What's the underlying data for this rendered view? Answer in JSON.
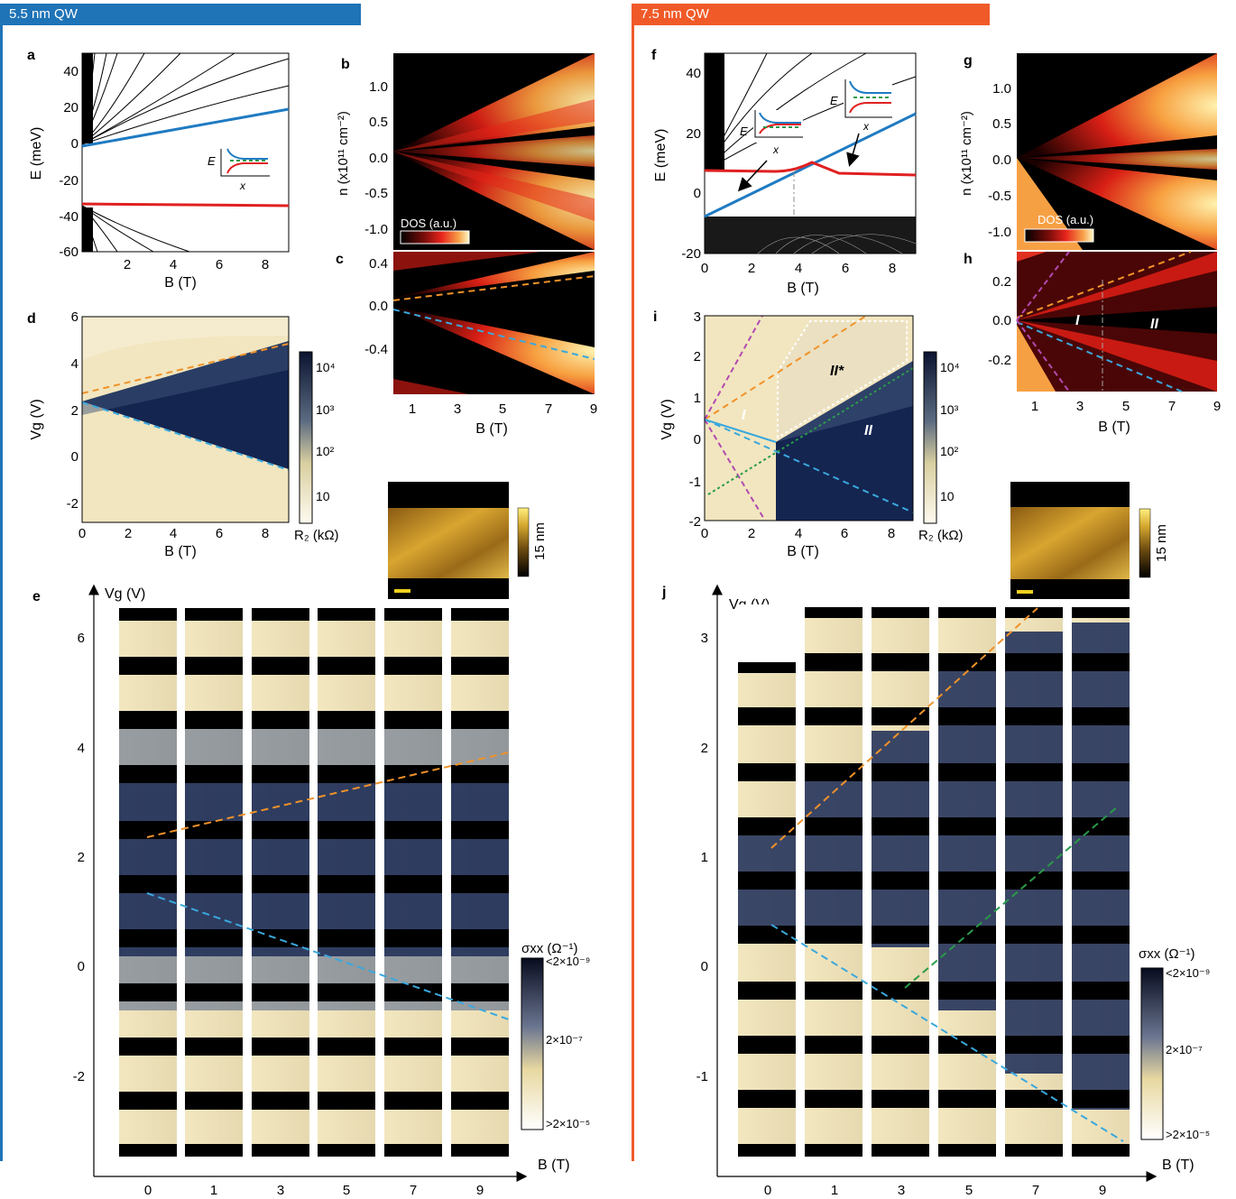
{
  "left_column": {
    "banner_label": "5.5 nm QW",
    "banner_color": "#1f73b7",
    "panels": {
      "a": {
        "letter": "a",
        "xlabel": "B (T)",
        "ylabel": "E (meV)",
        "xticks": [
          "2",
          "4",
          "6",
          "8"
        ],
        "yticks": [
          "40",
          "20",
          "0",
          "-20",
          "-40",
          "-60"
        ],
        "inset_ylabel": "E",
        "inset_xlabel": "x"
      },
      "b": {
        "letter": "b",
        "ylabel": "n (x10¹¹ cm⁻²)",
        "yticks": [
          "1.0",
          "0.5",
          "0.0",
          "-0.5",
          "-1.0"
        ],
        "colorbar_label": "DOS (a.u.)"
      },
      "c": {
        "letter": "c",
        "xlabel": "B (T)",
        "xticks": [
          "1",
          "3",
          "5",
          "7",
          "9"
        ],
        "yticks": [
          "0.4",
          "0.0",
          "-0.4"
        ]
      },
      "d": {
        "letter": "d",
        "xlabel": "B (T)",
        "ylabel": "Vg (V)",
        "xticks": [
          "0",
          "2",
          "4",
          "6",
          "8"
        ],
        "yticks": [
          "6",
          "4",
          "2",
          "0",
          "-2"
        ],
        "colorbar_ticks": [
          "10⁴",
          "10³",
          "10²",
          "10"
        ],
        "colorbar_label": "R₂ (kΩ)"
      },
      "afm": {
        "scale_label": "15 nm"
      },
      "e": {
        "letter": "e",
        "ylabel": "Vg (V)",
        "xlabel": "B (T)",
        "yticks": [
          "6",
          "4",
          "2",
          "0",
          "-2"
        ],
        "xticks": [
          "0",
          "1",
          "3",
          "5",
          "7",
          "9"
        ],
        "colorbar_label": "σxx (Ω⁻¹)",
        "colorbar_ticks": [
          "<2×10⁻⁹",
          "2×10⁻⁷",
          ">2×10⁻⁵"
        ]
      }
    }
  },
  "right_column": {
    "banner_label": "7.5 nm QW",
    "banner_color": "#f05a28",
    "panels": {
      "f": {
        "letter": "f",
        "xlabel": "B (T)",
        "ylabel": "E (meV)",
        "xticks": [
          "0",
          "2",
          "4",
          "6",
          "8"
        ],
        "yticks": [
          "40",
          "20",
          "0",
          "-20"
        ],
        "inset_ylabel": "E",
        "inset_xlabel": "x"
      },
      "g": {
        "letter": "g",
        "ylabel": "n (x10¹¹ cm⁻²)",
        "yticks": [
          "1.0",
          "0.5",
          "0.0",
          "-0.5",
          "-1.0"
        ],
        "colorbar_label": "DOS (a.u.)"
      },
      "h": {
        "letter": "h",
        "xlabel": "B (T)",
        "xticks": [
          "1",
          "3",
          "5",
          "7",
          "9"
        ],
        "yticks": [
          "0.2",
          "0.0",
          "-0.2"
        ],
        "region_labels": [
          "I",
          "II"
        ]
      },
      "i": {
        "letter": "i",
        "xlabel": "B (T)",
        "ylabel": "Vg (V)",
        "xticks": [
          "0",
          "2",
          "4",
          "6",
          "8"
        ],
        "yticks": [
          "3",
          "2",
          "1",
          "0",
          "-1",
          "-2"
        ],
        "region_labels": [
          "I",
          "II*",
          "II"
        ],
        "colorbar_ticks": [
          "10⁴",
          "10³",
          "10²",
          "10"
        ],
        "colorbar_label": "R₂ (kΩ)"
      },
      "afm": {
        "scale_label": "15 nm"
      },
      "j": {
        "letter": "j",
        "ylabel": "Vg (V)",
        "xlabel": "B (T)",
        "yticks": [
          "3",
          "2",
          "1",
          "0",
          "-1"
        ],
        "xticks": [
          "0",
          "1",
          "3",
          "5",
          "7",
          "9"
        ],
        "colorbar_label": "σxx (Ω⁻¹)",
        "colorbar_ticks": [
          "<2×10⁻⁹",
          "2×10⁻⁷",
          ">2×10⁻⁵"
        ]
      }
    }
  }
}
